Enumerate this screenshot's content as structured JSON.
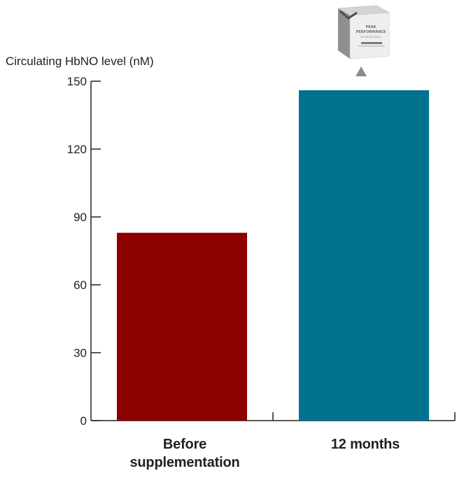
{
  "chart_data": {
    "type": "bar",
    "title": "",
    "ylabel": "Circulating HbNO level (nM)",
    "xlabel": "",
    "categories": [
      "Before supplementation",
      "12 months"
    ],
    "values": [
      83,
      146
    ],
    "ylim": [
      0,
      150
    ],
    "yticks": [
      0,
      30,
      60,
      90,
      120,
      150
    ],
    "colors": [
      "#8b0000",
      "#00718f"
    ],
    "grid": false
  },
  "product_badge": {
    "line1": "PEAK",
    "line2": "PERFORMANCE",
    "line3": "NUTRITION PACK",
    "marker_color": "#8c8c8c"
  }
}
